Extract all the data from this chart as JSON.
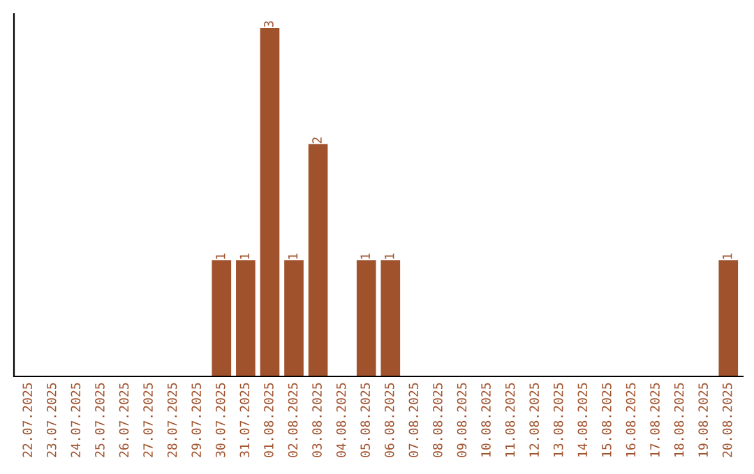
{
  "chart_data": {
    "type": "bar",
    "categories": [
      "22.07.2025",
      "23.07.2025",
      "24.07.2025",
      "25.07.2025",
      "26.07.2025",
      "27.07.2025",
      "28.07.2025",
      "29.07.2025",
      "30.07.2025",
      "31.07.2025",
      "01.08.2025",
      "02.08.2025",
      "03.08.2025",
      "04.08.2025",
      "05.08.2025",
      "06.08.2025",
      "07.08.2025",
      "08.08.2025",
      "09.08.2025",
      "10.08.2025",
      "11.08.2025",
      "12.08.2025",
      "13.08.2025",
      "14.08.2025",
      "15.08.2025",
      "16.08.2025",
      "17.08.2025",
      "18.08.2025",
      "19.08.2025",
      "20.08.2025"
    ],
    "values": [
      0,
      0,
      0,
      0,
      0,
      0,
      0,
      0,
      1,
      1,
      3,
      1,
      2,
      0,
      1,
      1,
      0,
      0,
      0,
      0,
      0,
      0,
      0,
      0,
      0,
      0,
      0,
      0,
      0,
      1
    ],
    "value_labels": [
      null,
      null,
      null,
      null,
      null,
      null,
      null,
      null,
      "1",
      "1",
      "3",
      "1",
      "2",
      null,
      "1",
      "1",
      null,
      null,
      null,
      null,
      null,
      null,
      null,
      null,
      null,
      null,
      null,
      null,
      null,
      "1"
    ],
    "color": "#a0522d",
    "grid": false,
    "tick_labels": "x"
  }
}
